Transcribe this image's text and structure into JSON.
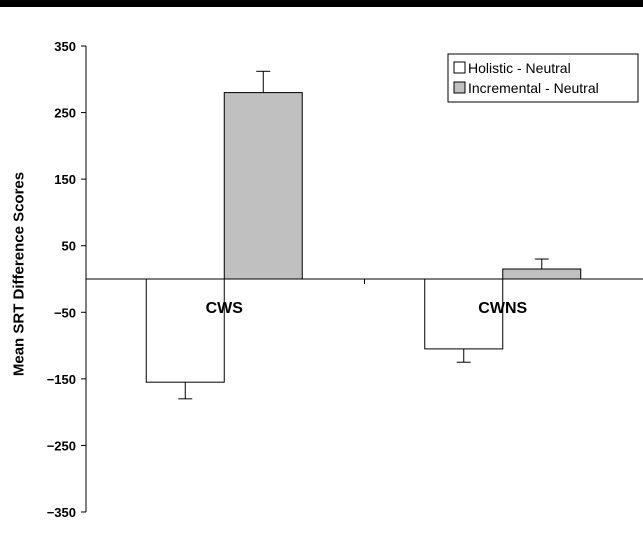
{
  "chart_data": {
    "type": "bar",
    "title": "",
    "xlabel": "",
    "ylabel": "Mean SRT Difference Scores",
    "ylim": [
      -350,
      350
    ],
    "yticks": [
      350,
      250,
      150,
      50,
      -50,
      -150,
      -250,
      -350
    ],
    "ytick_labels": [
      "350",
      "250",
      "150",
      "50",
      "−50",
      "−150",
      "−250",
      "−350"
    ],
    "categories": [
      "CWS",
      "CWNS"
    ],
    "series": [
      {
        "name": "Holistic - Neutral",
        "values": [
          -155,
          -105
        ],
        "errors": [
          25,
          20
        ],
        "color": "#ffffff"
      },
      {
        "name": "Incremental - Neutral",
        "values": [
          280,
          15
        ],
        "errors": [
          32,
          15
        ],
        "color": "#c0c0c0"
      }
    ],
    "legend_position": "top-right",
    "grid": false
  }
}
